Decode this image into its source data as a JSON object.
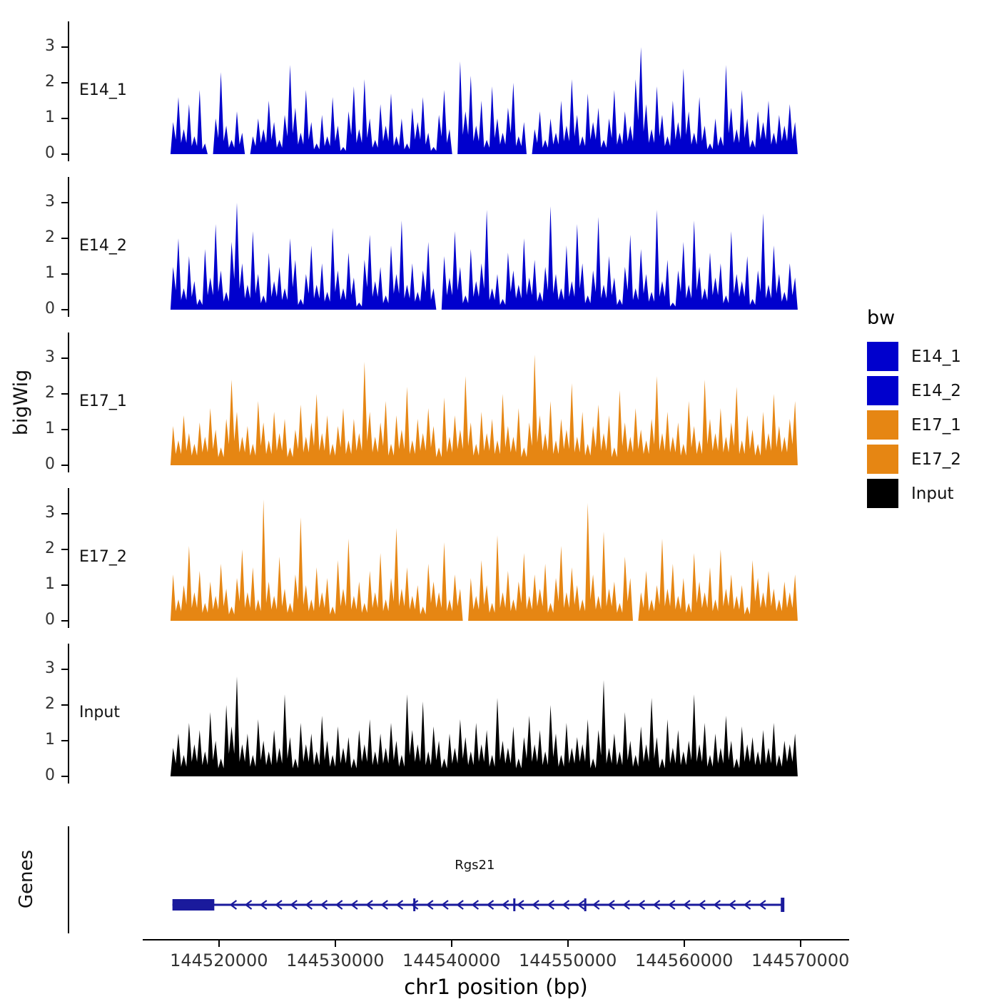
{
  "figure": {
    "y_axis_title": "bigWig",
    "genes_panel_title": "Genes",
    "x_axis_title": "chr1 position (bp)",
    "y_tick_labels": [
      "0",
      "1",
      "2",
      "3"
    ],
    "x_ticks": [
      {
        "label": "144520000",
        "pos": 144520000
      },
      {
        "label": "144530000",
        "pos": 144530000
      },
      {
        "label": "144540000",
        "pos": 144540000
      },
      {
        "label": "144550000",
        "pos": 144550000
      },
      {
        "label": "144560000",
        "pos": 144560000
      },
      {
        "label": "144570000",
        "pos": 144570000
      }
    ]
  },
  "legend": {
    "title": "bw",
    "entries": [
      {
        "label": "E14_1",
        "color": "#0000CD"
      },
      {
        "label": "E14_2",
        "color": "#0000CD"
      },
      {
        "label": "E17_1",
        "color": "#E68613"
      },
      {
        "label": "E17_2",
        "color": "#E68613"
      },
      {
        "label": "Input",
        "color": "#000000"
      }
    ]
  },
  "chart_data": {
    "type": "area",
    "title": "",
    "xlabel": "chr1 position (bp)",
    "ylabel": "bigWig",
    "panel_range": [
      144507000,
      144574500
    ],
    "signal_range": [
      144515600,
      144570000
    ],
    "ylim": [
      0,
      3.5
    ],
    "y_ticks": [
      0,
      1,
      2,
      3
    ],
    "tracks": [
      {
        "name": "E14_1",
        "color": "#0000CD",
        "values": [
          0.0,
          0.9,
          1.6,
          0.7,
          1.4,
          0.5,
          1.8,
          0.3,
          0.0,
          1.0,
          2.3,
          0.8,
          0.4,
          1.2,
          0.6,
          0.0,
          0.5,
          1.0,
          0.7,
          1.5,
          0.9,
          0.4,
          1.1,
          2.5,
          1.3,
          0.6,
          1.8,
          0.9,
          0.3,
          1.1,
          0.5,
          1.6,
          0.8,
          0.2,
          1.2,
          1.9,
          0.7,
          2.1,
          1.0,
          0.4,
          1.4,
          0.8,
          1.7,
          0.5,
          1.0,
          0.3,
          1.3,
          0.9,
          1.6,
          0.6,
          0.2,
          1.1,
          1.8,
          0.7,
          0.0,
          2.6,
          1.2,
          2.2,
          0.8,
          1.5,
          0.4,
          1.9,
          1.0,
          0.6,
          1.3,
          2.0,
          0.5,
          0.9,
          0.0,
          0.7,
          1.2,
          0.4,
          1.0,
          0.6,
          1.5,
          0.8,
          2.1,
          1.1,
          0.5,
          1.7,
          0.9,
          1.3,
          0.4,
          1.0,
          1.8,
          0.6,
          1.2,
          0.8,
          2.1,
          3.0,
          1.4,
          0.7,
          1.9,
          1.1,
          0.5,
          1.5,
          0.9,
          2.4,
          1.2,
          0.6,
          1.6,
          0.8,
          0.3,
          1.0,
          0.5,
          2.5,
          1.3,
          0.7,
          1.8,
          1.0,
          0.4,
          1.2,
          0.9,
          1.5,
          0.6,
          1.1,
          0.8,
          1.4,
          0.9,
          0.0
        ]
      },
      {
        "name": "E14_2",
        "color": "#0000CD",
        "values": [
          0.0,
          1.2,
          2.0,
          0.6,
          1.5,
          0.8,
          0.3,
          1.7,
          0.9,
          2.4,
          1.1,
          0.5,
          1.9,
          3.0,
          1.3,
          0.7,
          2.2,
          1.0,
          0.4,
          1.6,
          0.8,
          1.2,
          0.6,
          2.0,
          1.4,
          0.3,
          1.0,
          1.8,
          0.7,
          1.3,
          0.5,
          2.3,
          1.1,
          0.6,
          1.6,
          0.9,
          0.2,
          1.4,
          2.1,
          0.8,
          1.2,
          0.4,
          1.8,
          1.0,
          2.5,
          0.7,
          1.3,
          0.5,
          1.1,
          1.9,
          0.6,
          0.0,
          1.5,
          0.9,
          2.2,
          1.2,
          0.4,
          1.7,
          0.8,
          1.3,
          2.8,
          0.6,
          1.0,
          0.3,
          1.6,
          1.1,
          0.7,
          2.0,
          0.9,
          1.4,
          0.5,
          1.2,
          2.9,
          1.0,
          0.6,
          1.8,
          0.8,
          2.4,
          1.3,
          0.4,
          1.1,
          2.6,
          0.7,
          1.5,
          0.9,
          0.3,
          1.2,
          2.1,
          0.6,
          1.7,
          1.0,
          0.5,
          2.8,
          0.8,
          1.4,
          0.2,
          1.1,
          1.9,
          0.7,
          2.5,
          1.2,
          0.6,
          1.6,
          0.9,
          1.3,
          0.4,
          2.2,
          1.0,
          0.8,
          1.5,
          0.3,
          1.1,
          2.7,
          0.7,
          1.8,
          1.0,
          0.5,
          1.3,
          0.9,
          0.0
        ]
      },
      {
        "name": "E17_1",
        "color": "#E68613",
        "values": [
          0.0,
          1.1,
          0.7,
          1.4,
          0.9,
          0.6,
          1.2,
          0.8,
          1.6,
          1.0,
          0.5,
          1.3,
          2.4,
          1.5,
          0.8,
          1.1,
          0.6,
          1.8,
          1.2,
          0.7,
          1.5,
          0.9,
          1.3,
          0.5,
          1.0,
          1.7,
          0.8,
          1.2,
          2.0,
          0.9,
          1.4,
          0.6,
          1.1,
          1.6,
          0.7,
          1.3,
          0.9,
          2.9,
          1.5,
          0.8,
          1.2,
          1.8,
          0.6,
          1.4,
          1.0,
          2.2,
          0.7,
          1.3,
          0.9,
          1.6,
          1.1,
          0.5,
          1.9,
          0.8,
          1.4,
          1.0,
          2.5,
          1.2,
          0.6,
          1.5,
          0.9,
          1.3,
          0.7,
          2.0,
          1.1,
          0.8,
          1.6,
          0.5,
          1.2,
          3.1,
          1.4,
          0.9,
          1.8,
          0.7,
          1.3,
          1.0,
          2.3,
          0.8,
          1.5,
          0.6,
          1.1,
          1.7,
          0.9,
          1.4,
          0.5,
          2.1,
          1.2,
          0.8,
          1.6,
          1.0,
          0.7,
          1.3,
          2.5,
          0.9,
          1.5,
          0.8,
          1.2,
          0.6,
          1.8,
          1.1,
          0.7,
          2.4,
          1.3,
          0.9,
          1.6,
          0.8,
          1.2,
          2.2,
          0.7,
          1.4,
          1.0,
          0.6,
          1.5,
          0.9,
          2.0,
          1.1,
          0.8,
          1.3,
          1.8,
          0.0
        ]
      },
      {
        "name": "E17_2",
        "color": "#E68613",
        "values": [
          0.0,
          1.3,
          0.6,
          1.0,
          2.1,
          0.8,
          1.4,
          0.5,
          1.1,
          0.7,
          1.6,
          0.9,
          0.4,
          1.2,
          2.0,
          0.8,
          1.5,
          0.6,
          3.4,
          1.1,
          0.7,
          1.8,
          0.9,
          0.5,
          1.3,
          2.9,
          1.0,
          0.6,
          1.5,
          0.8,
          1.2,
          0.4,
          1.7,
          0.9,
          2.3,
          0.7,
          1.1,
          0.5,
          1.4,
          0.8,
          1.9,
          0.6,
          1.2,
          2.6,
          0.9,
          1.5,
          0.7,
          1.0,
          0.4,
          1.6,
          1.1,
          0.8,
          2.2,
          0.6,
          1.3,
          0.9,
          0.0,
          1.2,
          0.7,
          1.7,
          1.0,
          0.5,
          2.4,
          0.8,
          1.4,
          0.6,
          1.1,
          1.9,
          0.7,
          1.3,
          0.9,
          1.6,
          0.5,
          1.2,
          2.1,
          0.8,
          1.5,
          1.0,
          0.6,
          3.3,
          1.3,
          0.7,
          2.5,
          0.9,
          1.1,
          0.5,
          1.8,
          1.2,
          0.0,
          0.8,
          1.4,
          0.6,
          1.0,
          2.3,
          0.9,
          1.6,
          0.7,
          1.2,
          0.5,
          1.9,
          1.1,
          0.8,
          1.5,
          0.6,
          2.0,
          0.9,
          1.3,
          0.7,
          1.0,
          0.4,
          1.7,
          1.2,
          0.8,
          1.4,
          0.9,
          0.6,
          1.1,
          0.8,
          1.3,
          0.0
        ]
      },
      {
        "name": "Input",
        "color": "#000000",
        "values": [
          0.0,
          0.8,
          1.2,
          0.6,
          1.5,
          0.9,
          1.3,
          0.7,
          1.8,
          1.0,
          0.5,
          2.0,
          1.4,
          2.8,
          0.9,
          1.2,
          0.6,
          1.6,
          1.0,
          0.7,
          1.3,
          0.8,
          2.3,
          1.1,
          0.5,
          1.5,
          0.9,
          1.2,
          0.7,
          1.7,
          1.0,
          0.6,
          1.4,
          0.8,
          1.1,
          0.5,
          1.3,
          0.9,
          1.6,
          0.7,
          1.2,
          0.8,
          1.5,
          1.0,
          0.6,
          2.3,
          1.3,
          0.9,
          2.1,
          0.7,
          1.4,
          1.0,
          0.5,
          1.2,
          0.8,
          1.6,
          1.1,
          0.7,
          1.5,
          0.9,
          1.3,
          0.6,
          2.2,
          1.0,
          0.8,
          1.4,
          0.5,
          1.1,
          1.7,
          0.9,
          1.3,
          0.7,
          2.0,
          1.2,
          0.6,
          1.5,
          0.8,
          1.1,
          0.9,
          1.6,
          0.5,
          1.3,
          2.7,
          0.8,
          1.2,
          0.7,
          1.8,
          1.0,
          0.6,
          1.4,
          0.9,
          2.2,
          1.1,
          0.5,
          1.6,
          0.8,
          1.3,
          0.7,
          1.0,
          2.3,
          0.9,
          1.5,
          0.6,
          1.2,
          0.8,
          1.7,
          1.0,
          0.5,
          1.4,
          0.9,
          1.1,
          0.7,
          1.3,
          0.8,
          1.5,
          0.6,
          1.0,
          0.9,
          1.2,
          0.0
        ]
      }
    ],
    "gene": {
      "name": "Rgs21",
      "chrom": "chr1",
      "strand": "-",
      "start": 144516000,
      "end": 144568500,
      "thick_start": 144516000,
      "thick_end": 144519600,
      "exon_marks": [
        144536800,
        144545400,
        144551500
      ],
      "label_pos": 144542000,
      "arrow_spacing": 1300,
      "color": "#1A1A9C"
    }
  }
}
